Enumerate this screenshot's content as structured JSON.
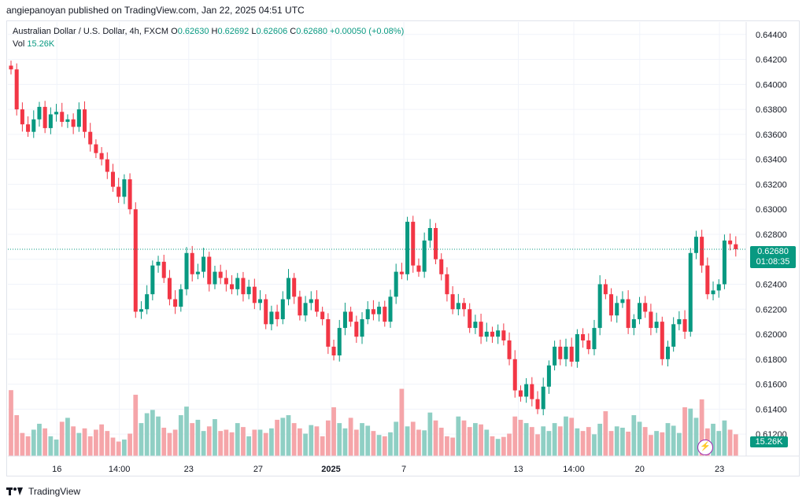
{
  "header": {
    "publish_text": "angiepanoyan published on TradingView.com, Jan 22, 2025 04:51 UTC"
  },
  "legend": {
    "symbol": "Australian Dollar / U.S. Dollar, 4h, FXCM",
    "o_label": "O",
    "o": "0.62630",
    "h_label": "H",
    "h": "0.62692",
    "l_label": "L",
    "l": "0.62606",
    "c_label": "C",
    "c": "0.62680",
    "change": "+0.00050 (+0.08%)",
    "vol_label": "Vol",
    "vol": "15.26K"
  },
  "price_tag": {
    "price": "0.62680",
    "countdown": "01:08:35"
  },
  "vol_tag": "15.26K",
  "brand": "TradingView",
  "colors": {
    "up": "#089981",
    "down": "#f23645",
    "vol_up": "#8fcfc4",
    "vol_down": "#f5a5a9",
    "grid": "#f0f3fa"
  },
  "chart_data": {
    "type": "candlestick",
    "interval": "4h",
    "y_ticks": [
      "0.64400",
      "0.64200",
      "0.64000",
      "0.63800",
      "0.63600",
      "0.63400",
      "0.63200",
      "0.63000",
      "0.62800",
      "0.62600",
      "0.62400",
      "0.62200",
      "0.62000",
      "0.61800",
      "0.61600",
      "0.61400",
      "0.61200"
    ],
    "x_ticks": [
      "16",
      "14:00",
      "23",
      "27",
      "2025",
      "7",
      "13",
      "14:00",
      "20",
      "23"
    ],
    "last_price": 0.6268,
    "ylim": [
      0.611,
      0.646
    ],
    "closes": [
      0.6412,
      0.638,
      0.6368,
      0.6362,
      0.6372,
      0.6382,
      0.6365,
      0.6376,
      0.6378,
      0.637,
      0.6372,
      0.6366,
      0.638,
      0.6362,
      0.6352,
      0.6345,
      0.634,
      0.633,
      0.6318,
      0.631,
      0.6324,
      0.63,
      0.6218,
      0.622,
      0.6232,
      0.6255,
      0.6258,
      0.6245,
      0.6228,
      0.6222,
      0.6236,
      0.6265,
      0.6248,
      0.625,
      0.6262,
      0.624,
      0.625,
      0.6245,
      0.624,
      0.6236,
      0.6245,
      0.6232,
      0.6238,
      0.6225,
      0.6228,
      0.6208,
      0.6218,
      0.6212,
      0.6228,
      0.6245,
      0.623,
      0.6215,
      0.6225,
      0.6228,
      0.6218,
      0.6212,
      0.619,
      0.6183,
      0.6205,
      0.6218,
      0.621,
      0.6198,
      0.6212,
      0.622,
      0.6216,
      0.6222,
      0.621,
      0.623,
      0.625,
      0.6248,
      0.629,
      0.6255,
      0.625,
      0.6275,
      0.6285,
      0.626,
      0.6248,
      0.6232,
      0.622,
      0.6225,
      0.622,
      0.6205,
      0.621,
      0.6198,
      0.6202,
      0.6198,
      0.6203,
      0.6195,
      0.618,
      0.6155,
      0.615,
      0.616,
      0.6148,
      0.614,
      0.6158,
      0.6175,
      0.619,
      0.618,
      0.619,
      0.6178,
      0.62,
      0.6195,
      0.6188,
      0.6205,
      0.624,
      0.6232,
      0.6215,
      0.6225,
      0.6228,
      0.6205,
      0.6212,
      0.6225,
      0.6218,
      0.6205,
      0.621,
      0.618,
      0.619,
      0.6208,
      0.6212,
      0.6202,
      0.6265,
      0.6278,
      0.6255,
      0.6232,
      0.6235,
      0.624,
      0.6275,
      0.6272,
      0.6268
    ],
    "volumes": [
      1,
      0.62,
      0.35,
      0.3,
      0.4,
      0.49,
      0.42,
      0.3,
      0.25,
      0.52,
      0.58,
      0.45,
      0.35,
      0.42,
      0.3,
      0.4,
      0.48,
      0.38,
      0.28,
      0.22,
      0.25,
      0.34,
      0.93,
      0.5,
      0.65,
      0.7,
      0.6,
      0.43,
      0.35,
      0.4,
      0.62,
      0.75,
      0.5,
      0.55,
      0.38,
      0.45,
      0.56,
      0.38,
      0.4,
      0.36,
      0.5,
      0.44,
      0.3,
      0.4,
      0.4,
      0.35,
      0.42,
      0.55,
      0.58,
      0.62,
      0.5,
      0.42,
      0.34,
      0.47,
      0.45,
      0.3,
      0.54,
      0.74,
      0.5,
      0.42,
      0.58,
      0.4,
      0.5,
      0.46,
      0.38,
      0.32,
      0.3,
      0.36,
      0.52,
      1.02,
      0.45,
      0.52,
      0.4,
      0.39,
      0.66,
      0.54,
      0.43,
      0.3,
      0.28,
      0.6,
      0.54,
      0.44,
      0.5,
      0.48,
      0.4,
      0.3,
      0.26,
      0.29,
      0.34,
      0.6,
      0.55,
      0.5,
      0.44,
      0.33,
      0.45,
      0.38,
      0.5,
      0.45,
      0.6,
      0.58,
      0.42,
      0.38,
      0.44,
      0.33,
      0.49,
      0.68,
      0.38,
      0.45,
      0.43,
      0.37,
      0.62,
      0.52,
      0.44,
      0.32,
      0.38,
      0.36,
      0.5,
      0.46,
      0.35,
      0.74,
      0.72,
      0.58,
      0.86,
      0.42,
      0.49,
      0.38,
      0.54,
      0.4,
      0.33
    ]
  }
}
